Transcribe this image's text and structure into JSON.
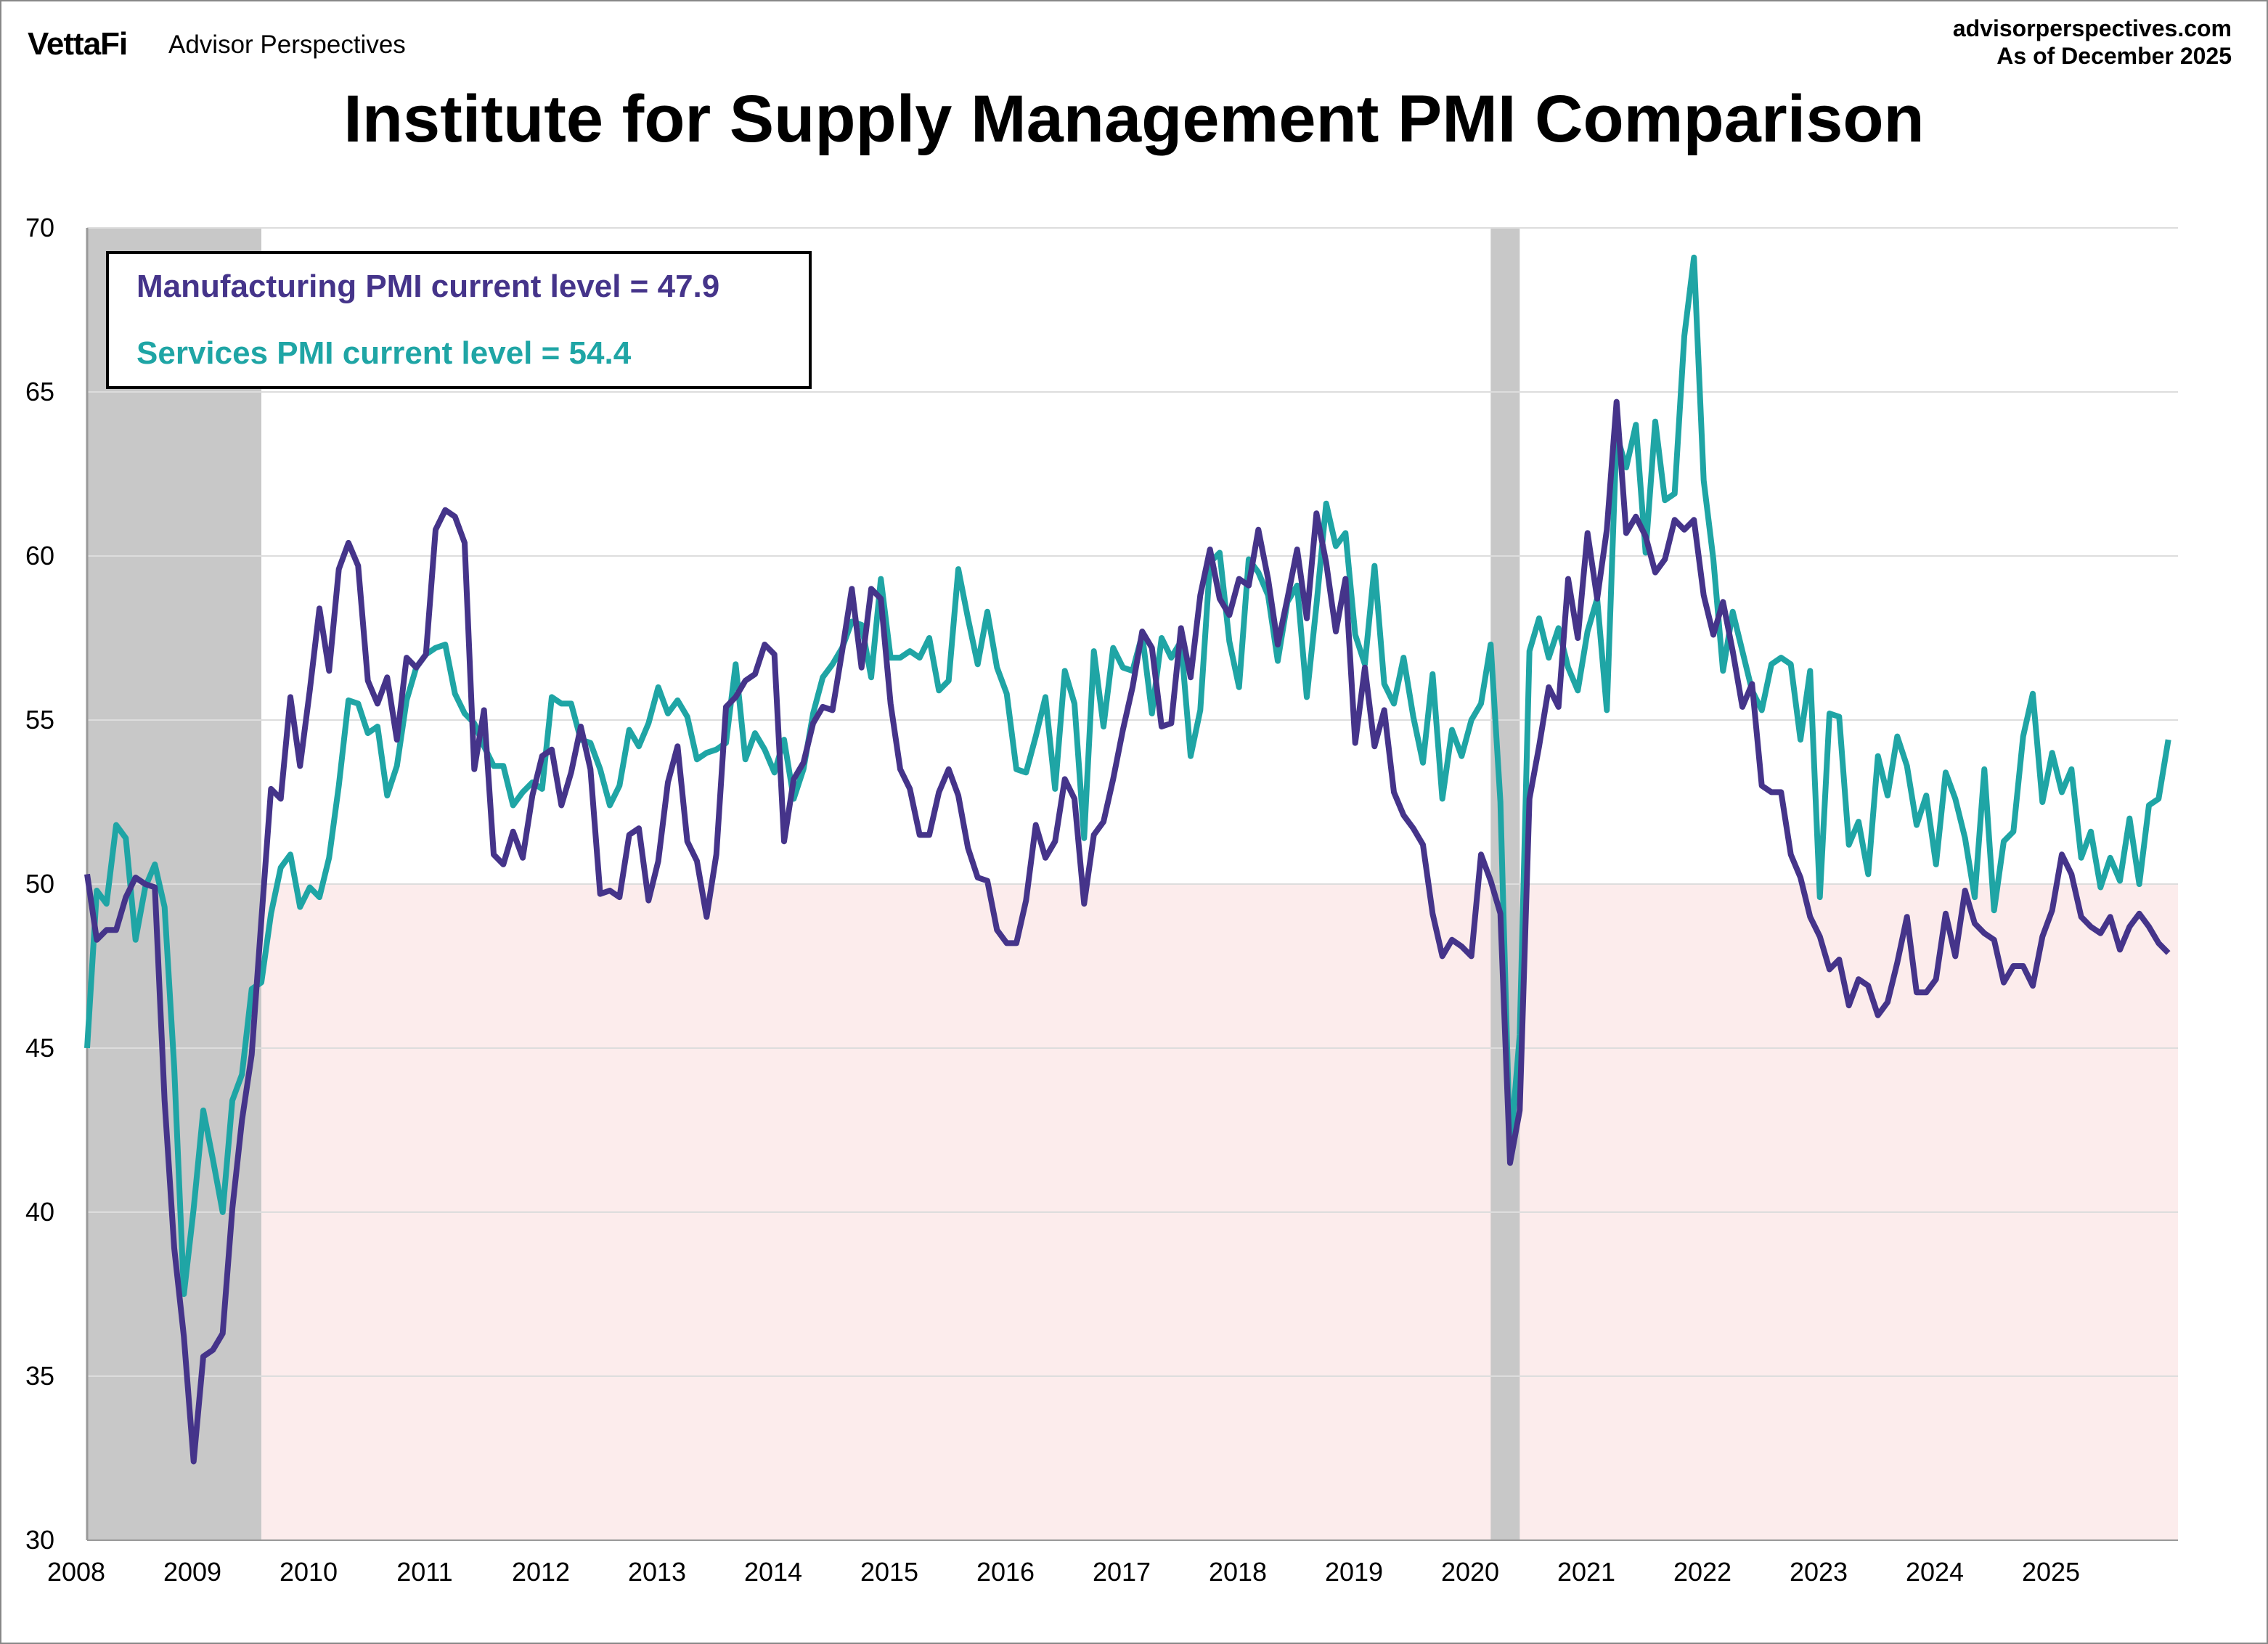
{
  "header": {
    "logo": "VettaFi",
    "brand": "Advisor Perspectives",
    "source": "advisorperspectives.com",
    "as_of": "As of December 2025"
  },
  "colors": {
    "manufacturing": "#45348a",
    "services": "#1fa5a5",
    "recession": "#c8c8c8",
    "contraction_zone": "#fcecec",
    "grid": "#dddddd"
  },
  "legend": {
    "manufacturing": "Manufacturing PMI current level = 47.9",
    "services": "Services PMI current level = 54.4"
  },
  "chart_data": {
    "type": "line",
    "title": "Institute for Supply Management PMI Comparison",
    "xlabel": "",
    "ylabel": "",
    "ylim": [
      30,
      70
    ],
    "yticks": [
      30,
      35,
      40,
      45,
      50,
      55,
      60,
      65,
      70
    ],
    "xticks": [
      "2008",
      "2009",
      "2010",
      "2011",
      "2012",
      "2013",
      "2014",
      "2015",
      "2016",
      "2017",
      "2018",
      "2019",
      "2020",
      "2021",
      "2022",
      "2023",
      "2024",
      "2025"
    ],
    "x_start": "2008-01",
    "x_end": "2025-12",
    "frequency": "monthly",
    "grid": true,
    "contraction_threshold": 50,
    "recessions": [
      [
        "2008-01",
        "2009-06"
      ],
      [
        "2020-02",
        "2020-04"
      ]
    ],
    "series": [
      {
        "name": "Manufacturing PMI",
        "values": [
          50.3,
          48.3,
          48.6,
          48.6,
          49.6,
          50.2,
          50.0,
          49.9,
          43.4,
          38.9,
          36.2,
          32.4,
          35.6,
          35.8,
          36.3,
          40.1,
          42.8,
          44.8,
          48.9,
          52.9,
          52.6,
          55.7,
          53.6,
          55.9,
          58.4,
          56.5,
          59.6,
          60.4,
          59.7,
          56.2,
          55.5,
          56.3,
          54.4,
          56.9,
          56.6,
          57.0,
          60.8,
          61.4,
          61.2,
          60.4,
          53.5,
          55.3,
          50.9,
          50.6,
          51.6,
          50.8,
          52.7,
          53.9,
          54.1,
          52.4,
          53.4,
          54.8,
          53.5,
          49.7,
          49.8,
          49.6,
          51.5,
          51.7,
          49.5,
          50.7,
          53.1,
          54.2,
          51.3,
          50.7,
          49.0,
          50.9,
          55.4,
          55.7,
          56.2,
          56.4,
          57.3,
          57.0,
          51.3,
          53.2,
          53.7,
          54.9,
          55.4,
          55.3,
          57.1,
          59.0,
          56.6,
          59.0,
          58.7,
          55.5,
          53.5,
          52.9,
          51.5,
          51.5,
          52.8,
          53.5,
          52.7,
          51.1,
          50.2,
          50.1,
          48.6,
          48.2,
          48.2,
          49.5,
          51.8,
          50.8,
          51.3,
          53.2,
          52.6,
          49.4,
          51.5,
          51.9,
          53.2,
          54.7,
          56.0,
          57.7,
          57.2,
          54.8,
          54.9,
          57.8,
          56.3,
          58.8,
          60.2,
          58.7,
          58.2,
          59.3,
          59.1,
          60.8,
          59.3,
          57.3,
          58.7,
          60.2,
          58.1,
          61.3,
          59.8,
          57.7,
          59.3,
          54.3,
          56.6,
          54.2,
          55.3,
          52.8,
          52.1,
          51.7,
          51.2,
          49.1,
          47.8,
          48.3,
          48.1,
          47.8,
          50.9,
          50.1,
          49.1,
          41.5,
          43.1,
          52.6,
          54.2,
          56.0,
          55.4,
          59.3,
          57.5,
          60.7,
          58.7,
          60.8,
          64.7,
          60.7,
          61.2,
          60.6,
          59.5,
          59.9,
          61.1,
          60.8,
          61.1,
          58.8,
          57.6,
          58.6,
          57.1,
          55.4,
          56.1,
          53.0,
          52.8,
          52.8,
          50.9,
          50.2,
          49.0,
          48.4,
          47.4,
          47.7,
          46.3,
          47.1,
          46.9,
          46.0,
          46.4,
          47.6,
          49.0,
          46.7,
          46.7,
          47.1,
          49.1,
          47.8,
          49.8,
          48.8,
          48.5,
          48.3,
          47.0,
          47.5,
          47.5,
          46.9,
          48.4,
          49.2,
          50.9,
          50.3,
          49.0,
          48.7,
          48.5,
          49.0,
          48.0,
          48.7,
          49.1,
          48.7,
          48.2,
          47.9
        ]
      },
      {
        "name": "Services PMI",
        "values": [
          45.0,
          49.8,
          49.4,
          51.8,
          51.4,
          48.3,
          49.9,
          50.6,
          49.3,
          44.4,
          37.5,
          40.1,
          43.1,
          41.6,
          40.0,
          43.4,
          44.2,
          46.8,
          47.0,
          49.1,
          50.5,
          50.9,
          49.3,
          49.9,
          49.6,
          50.8,
          53.0,
          55.6,
          55.5,
          54.6,
          54.8,
          52.7,
          53.6,
          55.6,
          56.6,
          57.0,
          57.2,
          57.3,
          55.8,
          55.2,
          54.9,
          54.2,
          53.6,
          53.6,
          52.4,
          52.8,
          53.1,
          52.9,
          55.7,
          55.5,
          55.5,
          54.4,
          54.3,
          53.5,
          52.4,
          53.0,
          54.7,
          54.2,
          54.9,
          56.0,
          55.2,
          55.6,
          55.1,
          53.8,
          54.0,
          54.1,
          54.3,
          56.7,
          53.8,
          54.6,
          54.1,
          53.4,
          54.4,
          52.6,
          53.5,
          55.2,
          56.3,
          56.7,
          57.2,
          58.0,
          57.9,
          56.3,
          59.3,
          56.9,
          56.9,
          57.1,
          56.9,
          57.5,
          55.9,
          56.2,
          59.6,
          58.1,
          56.7,
          58.3,
          56.6,
          55.8,
          53.5,
          53.4,
          54.5,
          55.7,
          52.9,
          56.5,
          55.5,
          51.4,
          57.1,
          54.8,
          57.2,
          56.6,
          56.5,
          57.6,
          55.2,
          57.5,
          56.9,
          57.4,
          53.9,
          55.3,
          59.8,
          60.1,
          57.4,
          56.0,
          59.9,
          59.5,
          58.8,
          56.8,
          58.6,
          59.1,
          55.7,
          58.5,
          61.6,
          60.3,
          60.7,
          57.6,
          56.7,
          59.7,
          56.1,
          55.5,
          56.9,
          55.1,
          53.7,
          56.4,
          52.6,
          54.7,
          53.9,
          55.0,
          55.5,
          57.3,
          52.5,
          41.8,
          45.4,
          57.1,
          58.1,
          56.9,
          57.8,
          56.6,
          55.9,
          57.7,
          58.7,
          55.3,
          63.7,
          62.7,
          64.0,
          60.1,
          64.1,
          61.7,
          61.9,
          66.7,
          69.1,
          62.3,
          59.9,
          56.5,
          58.3,
          57.1,
          55.9,
          55.3,
          56.7,
          56.9,
          56.7,
          54.4,
          56.5,
          49.6,
          55.2,
          55.1,
          51.2,
          51.9,
          50.3,
          53.9,
          52.7,
          54.5,
          53.6,
          51.8,
          52.7,
          50.6,
          53.4,
          52.6,
          51.4,
          49.6,
          53.5,
          49.2,
          51.3,
          51.6,
          54.5,
          55.8,
          52.5,
          54.0,
          52.8,
          53.5,
          50.8,
          51.6,
          49.9,
          50.8,
          50.1,
          52.0,
          50.0,
          52.4,
          52.6,
          54.4
        ]
      }
    ]
  }
}
